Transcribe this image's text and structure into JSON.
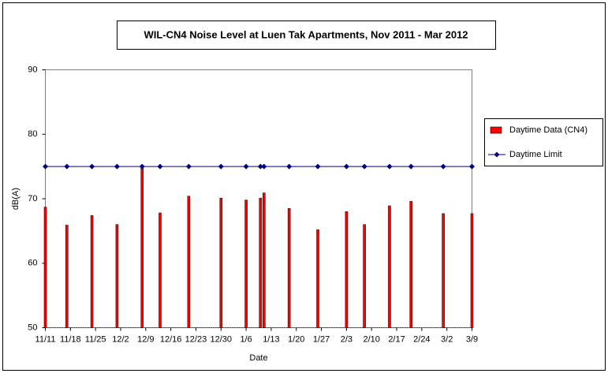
{
  "chart_data": {
    "type": "bar_line",
    "title": "WIL-CN4 Noise Level at Luen Tak Apartments, Nov 2011 - Mar 2012",
    "x_label": "Date",
    "y_label": "dB(A)",
    "x": [
      "11/11",
      "11/17",
      "11/24",
      "12/1",
      "12/8",
      "12/13",
      "12/21",
      "12/30",
      "1/6",
      "1/10",
      "1/11",
      "1/18",
      "1/26",
      "2/3",
      "2/8",
      "2/15",
      "2/21",
      "3/1",
      "3/9"
    ],
    "series": [
      {
        "name": "Daytime Data (CN4)",
        "kind": "bar",
        "color": "#ff0000",
        "values": [
          68.7,
          65.9,
          67.4,
          66.0,
          75.0,
          67.8,
          70.4,
          70.1,
          69.8,
          70.1,
          70.9,
          68.5,
          65.2,
          68.0,
          66.0,
          68.9,
          69.6,
          67.7,
          67.7
        ]
      },
      {
        "name": "Daytime Limit",
        "kind": "line",
        "color": "#000080",
        "values": [
          75,
          75,
          75,
          75,
          75,
          75,
          75,
          75,
          75,
          75,
          75,
          75,
          75,
          75,
          75,
          75,
          75,
          75,
          75
        ]
      }
    ],
    "xlim": [
      "11/11",
      "3/9"
    ],
    "xticks": [
      "11/11",
      "11/18",
      "11/25",
      "12/2",
      "12/9",
      "12/16",
      "12/23",
      "12/30",
      "1/6",
      "1/13",
      "1/20",
      "1/27",
      "2/3",
      "2/10",
      "2/17",
      "2/24",
      "3/2",
      "3/9"
    ],
    "ylim": [
      50,
      90
    ],
    "yticks": [
      50,
      60,
      70,
      80,
      90
    ],
    "legend": "right"
  }
}
